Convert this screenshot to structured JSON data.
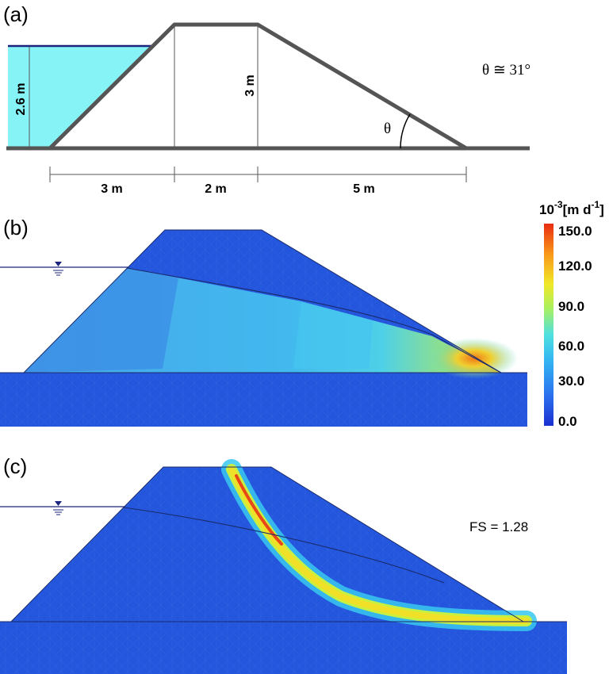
{
  "panels": {
    "a": {
      "label": "(a)",
      "water_depth": "2.6 m",
      "crest_height": "3 m",
      "angle_symbol": "θ",
      "angle_note": "θ ≅ 31°",
      "dimensions": [
        "3 m",
        "2 m",
        "5 m"
      ]
    },
    "b": {
      "label": "(b)",
      "colorbar": {
        "unit_base": "10",
        "unit_exp": "-3",
        "unit_main": "[m d",
        "unit_exp2": "-1",
        "unit_close": "]",
        "ticks": [
          "150.0",
          "120.0",
          "90.0",
          "60.0",
          "30.0",
          "0.0"
        ],
        "colors": [
          "#2238d6",
          "#2d7cf0",
          "#36c0f0",
          "#5ee8c8",
          "#b4f050",
          "#f0e020",
          "#f8a018",
          "#e83010"
        ]
      }
    },
    "c": {
      "label": "(c)",
      "fs_text": "FS = 1.28"
    }
  },
  "colors": {
    "water": "#86f4f6",
    "field_blue": "#2456dd",
    "outline": "#555555"
  }
}
